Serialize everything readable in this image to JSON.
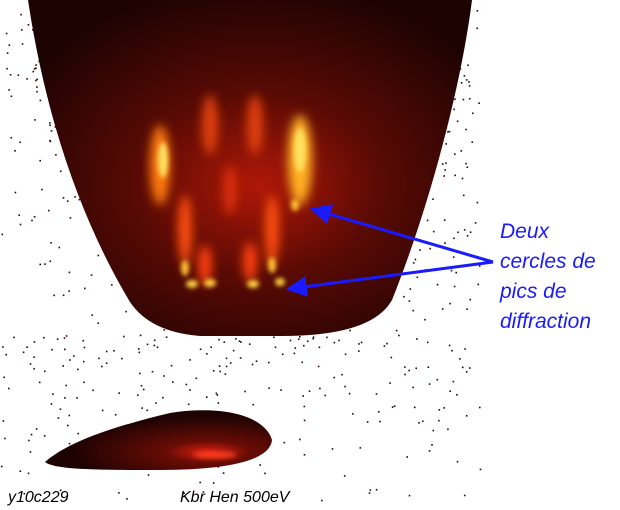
{
  "annotation": {
    "lines": [
      "Deux",
      "cercles de",
      "pics de",
      "diffraction"
    ]
  },
  "captions": {
    "run": "y10c229",
    "sample": "Kbr Hen 500eV"
  }
}
